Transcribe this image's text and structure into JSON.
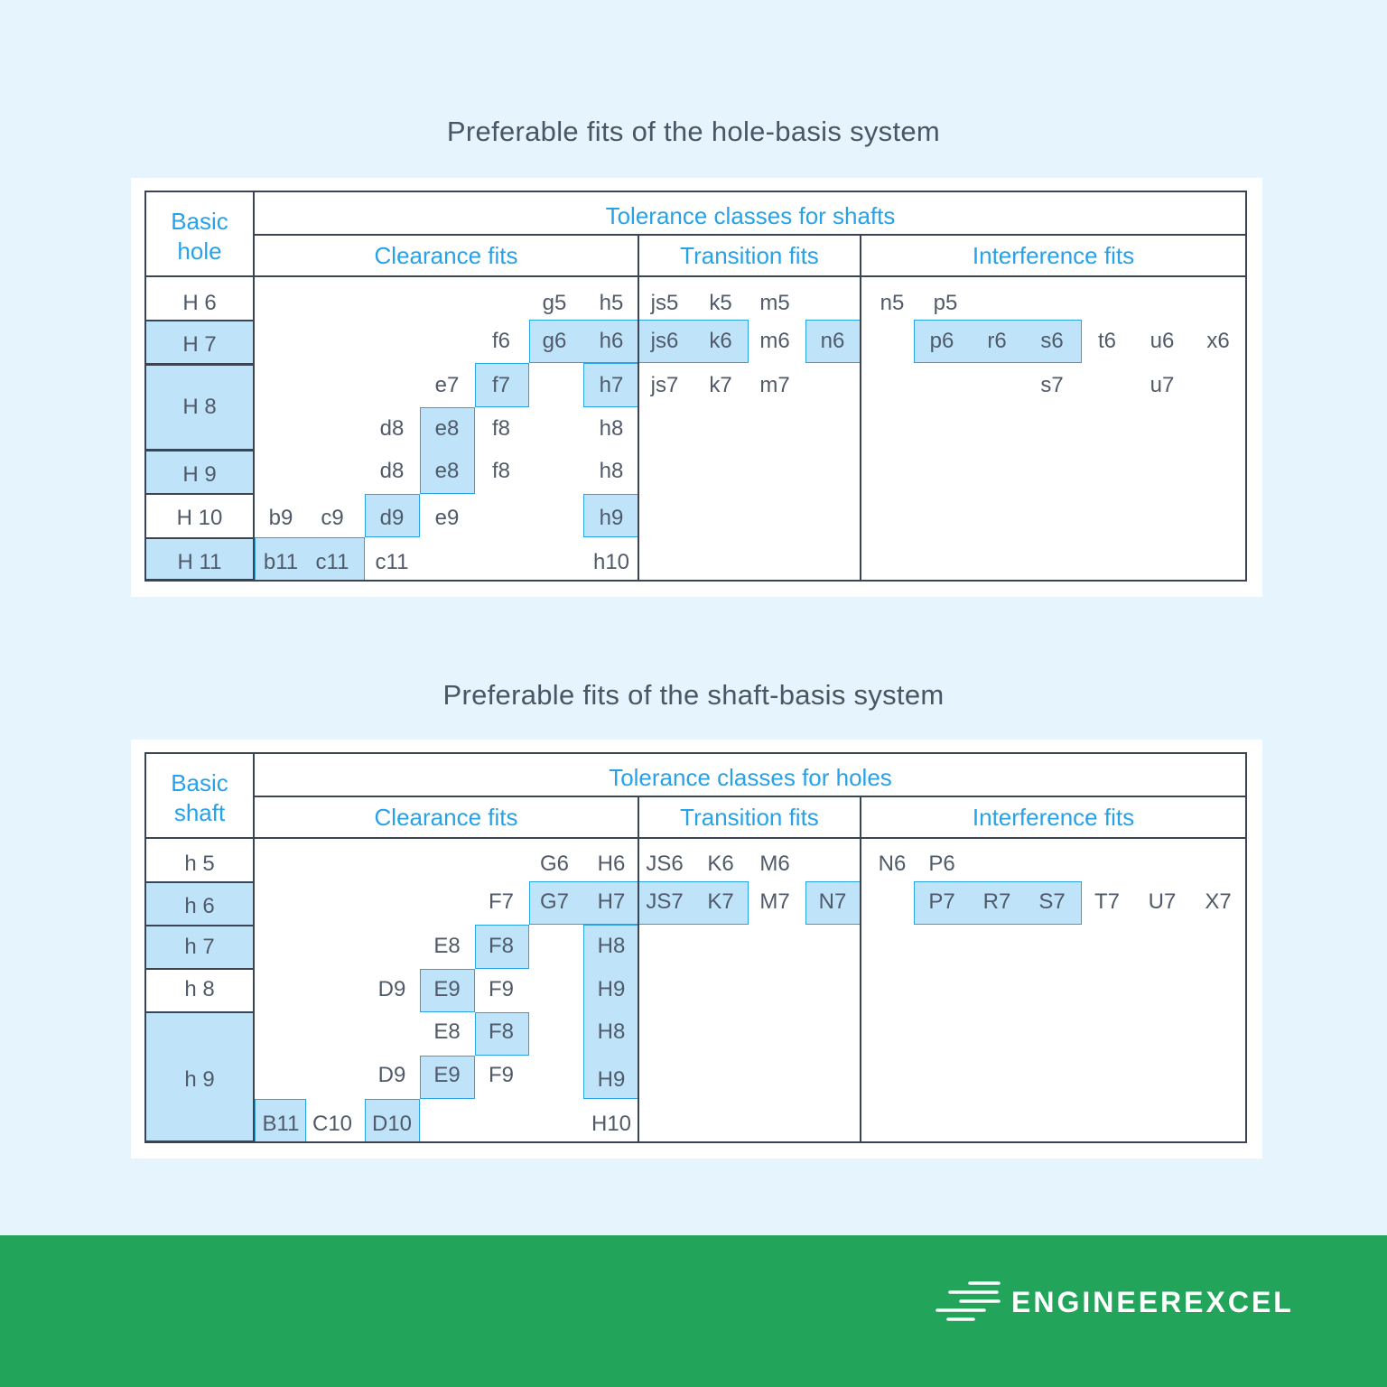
{
  "hole_basis": {
    "title": "Preferable fits of the hole-basis system",
    "basic_header": "Basic hole",
    "tolerance_header": "Tolerance classes for shafts",
    "groups": {
      "clearance": "Clearance fits",
      "transition": "Transition fits",
      "interference": "Interference fits"
    },
    "rows": [
      {
        "basic": "H 6",
        "highlighted": false,
        "shafts": [
          "g5",
          "h5",
          "js5",
          "k5",
          "m5",
          "n5",
          "p5"
        ]
      },
      {
        "basic": "H 7",
        "highlighted": true,
        "shafts": [
          "f6",
          "g6",
          "h6",
          "js6",
          "k6",
          "m6",
          "n6",
          "p6",
          "r6",
          "s6",
          "t6",
          "u6",
          "x6"
        ]
      },
      {
        "basic": "H 8",
        "highlighted": true,
        "shafts": [
          "e7",
          "f7",
          "h7",
          "js7",
          "k7",
          "m7",
          "s7",
          "u7",
          "d8",
          "e8",
          "f8",
          "h8"
        ]
      },
      {
        "basic": "H 9",
        "highlighted": true,
        "shafts": [
          "d8",
          "e8",
          "f8",
          "h8"
        ]
      },
      {
        "basic": "H 10",
        "highlighted": false,
        "shafts": [
          "b9",
          "c9",
          "d9",
          "e9",
          "h9"
        ]
      },
      {
        "basic": "H 11",
        "highlighted": true,
        "shafts": [
          "b11",
          "c11",
          "c11",
          "h10"
        ]
      }
    ]
  },
  "shaft_basis": {
    "title": "Preferable fits of the shaft-basis system",
    "basic_header": "Basic shaft",
    "tolerance_header": "Tolerance classes for holes",
    "groups": {
      "clearance": "Clearance fits",
      "transition": "Transition fits",
      "interference": "Interference fits"
    },
    "rows": [
      {
        "basic": "h 5",
        "highlighted": false,
        "holes": [
          "G6",
          "H6",
          "JS6",
          "K6",
          "M6",
          "N6",
          "P6"
        ]
      },
      {
        "basic": "h 6",
        "highlighted": true,
        "holes": [
          "F7",
          "G7",
          "H7",
          "JS7",
          "K7",
          "M7",
          "N7",
          "P7",
          "R7",
          "S7",
          "T7",
          "U7",
          "X7"
        ]
      },
      {
        "basic": "h 7",
        "highlighted": true,
        "holes": [
          "E8",
          "F8",
          "H8"
        ]
      },
      {
        "basic": "h 8",
        "highlighted": false,
        "holes": [
          "D9",
          "E9",
          "F9",
          "H9"
        ]
      },
      {
        "basic": "h 9",
        "highlighted": true,
        "holes": [
          "E8",
          "F8",
          "H8",
          "D9",
          "E9",
          "F9",
          "H9",
          "B11",
          "C10",
          "D10",
          "H10"
        ]
      }
    ]
  },
  "brand": "ENGINEEREXCEL"
}
